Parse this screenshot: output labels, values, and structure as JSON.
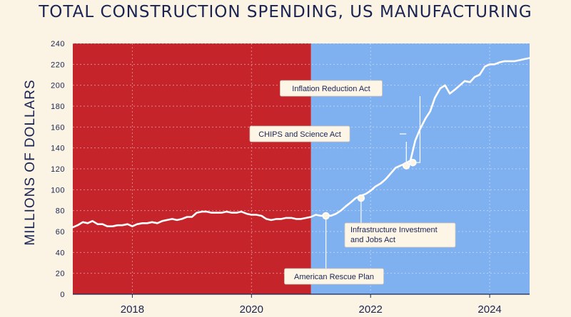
{
  "chart_data": {
    "type": "line",
    "title": "TOTAL CONSTRUCTION SPENDING, US MANUFACTURING",
    "ylabel": "MILLIONS OF DOLLARS",
    "xlabel": "",
    "ylim": [
      0,
      240
    ],
    "xlim": [
      2017.0,
      2024.67
    ],
    "yticks": [
      0,
      20,
      40,
      60,
      80,
      100,
      120,
      140,
      160,
      180,
      200,
      220,
      240
    ],
    "xticks": [
      2018,
      2020,
      2022,
      2024
    ],
    "xtick_labels": [
      "2018",
      "2020",
      "2022",
      "2024"
    ],
    "grid": true,
    "background_regions": [
      {
        "from": 2017.0,
        "to": 2021.0,
        "color": "#c4242a"
      },
      {
        "from": 2021.0,
        "to": 2024.67,
        "color": "#7fb0f0"
      }
    ],
    "line_color": "#ffffff",
    "series": [
      {
        "x": [
          2017.0,
          2017.08,
          2017.17,
          2017.25,
          2017.33,
          2017.42,
          2017.5,
          2017.58,
          2017.67,
          2017.75,
          2017.83,
          2017.92,
          2018.0,
          2018.08,
          2018.17,
          2018.25,
          2018.33,
          2018.42,
          2018.5,
          2018.58,
          2018.67,
          2018.75,
          2018.83,
          2018.92,
          2019.0,
          2019.08,
          2019.17,
          2019.25,
          2019.33,
          2019.42,
          2019.5,
          2019.58,
          2019.67,
          2019.75,
          2019.83,
          2019.92,
          2020.0,
          2020.08,
          2020.17,
          2020.25,
          2020.33,
          2020.42,
          2020.5,
          2020.58,
          2020.67,
          2020.75,
          2020.83,
          2020.92,
          2021.0,
          2021.08,
          2021.17,
          2021.25,
          2021.33,
          2021.42,
          2021.5,
          2021.58,
          2021.67,
          2021.75,
          2021.83,
          2021.92,
          2022.0,
          2022.08,
          2022.17,
          2022.25,
          2022.33,
          2022.42,
          2022.5,
          2022.58,
          2022.67,
          2022.75,
          2022.83,
          2022.92,
          2023.0,
          2023.08,
          2023.17,
          2023.25,
          2023.33,
          2023.42,
          2023.5,
          2023.58,
          2023.67,
          2023.75,
          2023.83,
          2023.92,
          2024.0,
          2024.08,
          2024.17,
          2024.25,
          2024.33,
          2024.42,
          2024.5,
          2024.58,
          2024.67
        ],
        "values": [
          64,
          66,
          69,
          68,
          70,
          67,
          67,
          65,
          65,
          66,
          66,
          67,
          65,
          67,
          68,
          68,
          69,
          68,
          70,
          71,
          72,
          71,
          72,
          74,
          74,
          78,
          79,
          79,
          78,
          78,
          78,
          79,
          78,
          78,
          79,
          77,
          76,
          76,
          75,
          72,
          71,
          72,
          72,
          73,
          73,
          72,
          72,
          73,
          74,
          76,
          75,
          76,
          75,
          77,
          80,
          84,
          88,
          92,
          94,
          96,
          99,
          103,
          106,
          110,
          115,
          121,
          123,
          125,
          128,
          147,
          158,
          168,
          175,
          188,
          197,
          200,
          192,
          196,
          200,
          204,
          203,
          208,
          210,
          218,
          220,
          220,
          222,
          223,
          223,
          223,
          224,
          225,
          226
        ]
      }
    ],
    "annotations": [
      {
        "label": "American Rescue Plan",
        "x": 2021.25,
        "y": 75
      },
      {
        "label": "Infrastructure Investment and Jobs Act",
        "x": 2021.84,
        "y": 92
      },
      {
        "label": "CHIPS and Science Act",
        "x": 2022.6,
        "y": 123
      },
      {
        "label": "Inflation Reduction Act",
        "x": 2022.71,
        "y": 126
      }
    ]
  }
}
